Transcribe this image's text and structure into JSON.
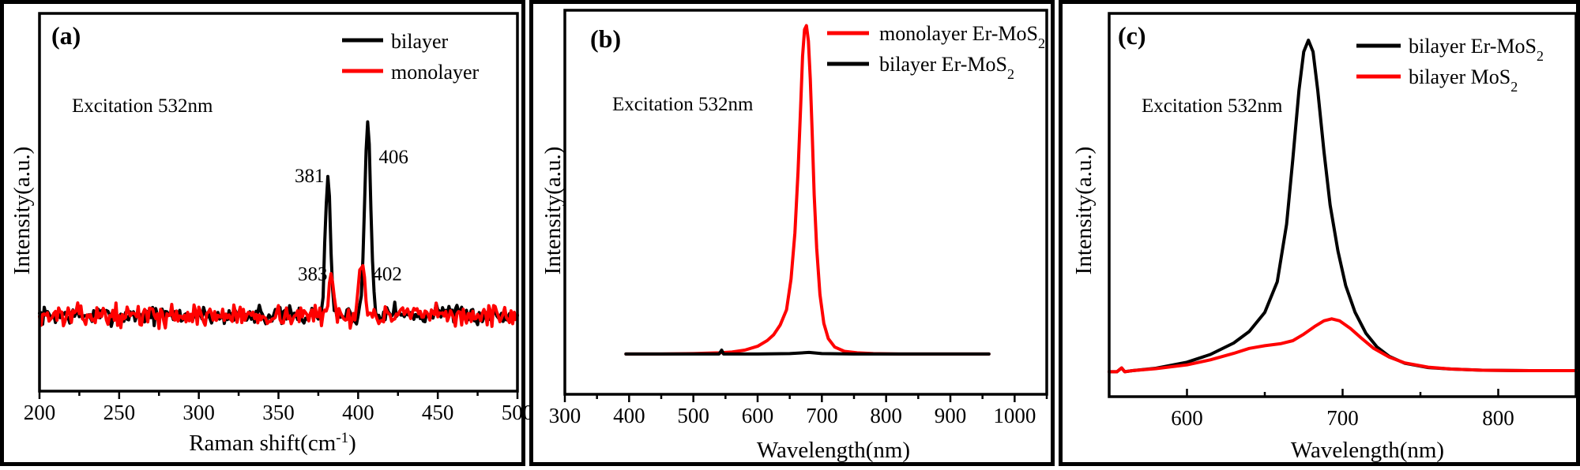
{
  "chart_data": [
    {
      "panel": "(a)",
      "type": "line",
      "xlabel": "Raman shift(cm",
      "xlabel_sup": "-1",
      "xlabel_end": ")",
      "ylabel": "Intensity(a.u.)",
      "xlim": [
        200,
        500
      ],
      "ylim": [
        0,
        100
      ],
      "xticks": [
        200,
        250,
        300,
        350,
        400,
        450,
        500
      ],
      "grid": false,
      "legend_position": "top-right",
      "annotation": "Excitation 532nm",
      "peak_labels": [
        {
          "text": "406",
          "x": 406,
          "y": 62
        },
        {
          "text": "381",
          "x": 381,
          "y": 57
        },
        {
          "text": "383",
          "x": 383,
          "y": 31
        },
        {
          "text": "402",
          "x": 402,
          "y": 31
        }
      ],
      "series": [
        {
          "name": "bilayer",
          "color": "#000000",
          "baseline": 20,
          "noise": 1.6,
          "seed": 7,
          "peaks": [
            [
              381,
              37,
              1.6
            ],
            [
              406,
              51,
              1.9
            ],
            [
              338,
              3,
              1.0
            ],
            [
              420,
              2,
              3.0
            ],
            [
              452,
              2,
              3.0
            ]
          ]
        },
        {
          "name": "monolayer",
          "color": "#ff0000",
          "baseline": 20,
          "noise": 1.9,
          "seed": 13,
          "peaks": [
            [
              383,
              11,
              1.4
            ],
            [
              402,
              16,
              1.6
            ]
          ]
        }
      ]
    },
    {
      "panel": "(b)",
      "type": "line",
      "xlabel": "Wavelength(nm)",
      "ylabel": "Intensity(a.u.)",
      "xlim": [
        300,
        1050
      ],
      "ylim": [
        0,
        100
      ],
      "xticks": [
        300,
        400,
        500,
        600,
        700,
        800,
        900,
        1000
      ],
      "grid": false,
      "legend_position": "top-right",
      "annotation": "Excitation 532nm",
      "series": [
        {
          "name": "monolayer Er-MoS",
          "name_sub": "2",
          "color": "#ff0000",
          "x": [
            395,
            450,
            500,
            540,
            560,
            580,
            600,
            615,
            625,
            635,
            645,
            652,
            658,
            663,
            667,
            670,
            673,
            676,
            679,
            682,
            685,
            688,
            692,
            697,
            703,
            710,
            720,
            735,
            755,
            780,
            820,
            870,
            920,
            960
          ],
          "y": [
            10.5,
            10.5,
            10.6,
            10.8,
            11.0,
            11.5,
            12.5,
            14.0,
            15.5,
            18.0,
            22.0,
            30.0,
            42.0,
            58.0,
            75.0,
            88.0,
            95.0,
            96.0,
            92.0,
            82.0,
            68.0,
            52.0,
            38.0,
            26.0,
            18.5,
            14.5,
            12.3,
            11.2,
            10.8,
            10.6,
            10.5,
            10.5,
            10.5,
            10.5
          ]
        },
        {
          "name": "bilayer Er-MoS",
          "name_sub": "2",
          "color": "#000000",
          "x": [
            395,
            450,
            500,
            540,
            544,
            547,
            550,
            600,
            650,
            680,
            700,
            750,
            800,
            850,
            900,
            960
          ],
          "y": [
            10.5,
            10.5,
            10.5,
            10.5,
            11.5,
            10.5,
            10.5,
            10.5,
            10.6,
            10.9,
            10.6,
            10.5,
            10.5,
            10.5,
            10.5,
            10.5
          ]
        }
      ]
    },
    {
      "panel": "(c)",
      "type": "line",
      "xlabel": "Wavelength(nm)",
      "ylabel": "Intensity(a.u.)",
      "xlim": [
        550,
        850
      ],
      "ylim": [
        0,
        100
      ],
      "xticks": [
        600,
        700,
        800
      ],
      "grid": false,
      "legend_position": "top-right",
      "annotation": "Excitation 532nm",
      "series": [
        {
          "name": "bilayer Er-MoS",
          "name_sub": "2",
          "color": "#000000",
          "x": [
            550,
            555,
            558,
            560,
            565,
            580,
            600,
            615,
            630,
            640,
            650,
            658,
            664,
            668,
            672,
            675,
            678,
            681,
            684,
            688,
            692,
            697,
            702,
            708,
            715,
            722,
            730,
            740,
            755,
            770,
            790,
            820,
            850
          ],
          "y": [
            6.5,
            6.5,
            7.5,
            6.5,
            6.8,
            7.4,
            9.0,
            11.0,
            14.0,
            17.0,
            22.0,
            30.0,
            45.0,
            62.0,
            80.0,
            90.0,
            93.0,
            90.0,
            80.0,
            64.0,
            50.0,
            38.0,
            29.0,
            22.0,
            16.5,
            13.0,
            10.5,
            8.7,
            7.6,
            7.2,
            6.9,
            6.8,
            6.8
          ]
        },
        {
          "name": "bilayer MoS",
          "name_sub": "2",
          "color": "#ff0000",
          "x": [
            550,
            555,
            558,
            560,
            565,
            580,
            600,
            615,
            630,
            640,
            650,
            660,
            668,
            675,
            682,
            688,
            693,
            698,
            705,
            712,
            720,
            730,
            740,
            755,
            770,
            790,
            820,
            850
          ],
          "y": [
            6.5,
            6.5,
            7.5,
            6.5,
            6.8,
            7.3,
            8.3,
            9.6,
            11.3,
            12.6,
            13.3,
            13.8,
            14.6,
            16.3,
            18.3,
            19.8,
            20.3,
            19.8,
            17.8,
            15.3,
            12.6,
            10.3,
            8.8,
            7.7,
            7.2,
            6.9,
            6.8,
            6.8
          ]
        }
      ]
    }
  ]
}
